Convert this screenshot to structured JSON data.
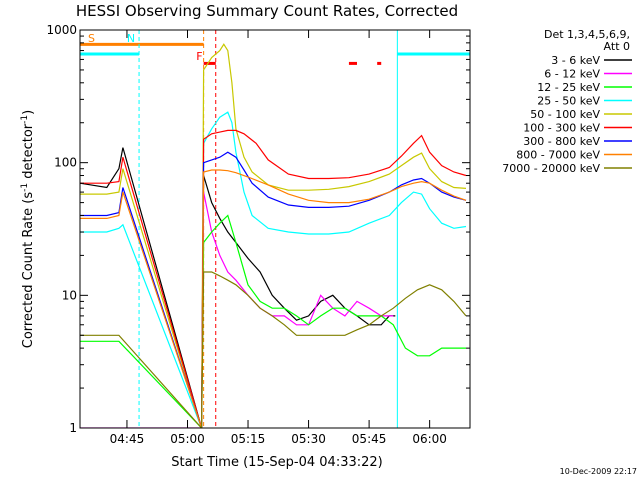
{
  "chart_data": {
    "type": "line",
    "title": "HESSI Observing Summary Count Rates, Corrected",
    "xlabel": "Start Time (15-Sep-04 04:33:22)",
    "ylabel": "Corrected Count Rate (s⁻¹ detector⁻¹)",
    "ylabel_main": "Corrected Count Rate (s",
    "ylabel_exp": "-1",
    "ylabel_mid": " detector",
    "ylabel_end": ")",
    "y_scale": "log",
    "ylim": [
      1,
      1000
    ],
    "xlim": [
      "04:33:22",
      "06:10:00"
    ],
    "x_ticks": [
      "04:45",
      "05:00",
      "05:15",
      "05:30",
      "05:45",
      "06:00"
    ],
    "y_ticks": [
      "1",
      "10",
      "100",
      "1000"
    ],
    "grid": false,
    "legend_position": "right",
    "legend_header": [
      "Det 1,3,4,5,6,9,",
      "Att 0"
    ],
    "footer": "10-Dec-2009 22:17",
    "colors": {
      "saa": "#00ffff",
      "night": "#ff8000",
      "flare": "#ff0000"
    },
    "intervals": [
      {
        "name": "night",
        "label": "S",
        "start": "04:33:22",
        "end": "05:04:00",
        "bar_value": 780,
        "color": "#ff8000"
      },
      {
        "name": "saa",
        "label": "N",
        "start": "04:33:22",
        "end": "04:48:00",
        "bar_value": 660,
        "color": "#00ffff"
      },
      {
        "name": "flare",
        "label": "F",
        "start": "05:04:00",
        "end": "05:07:00",
        "color": "#ff0000"
      },
      {
        "name": "saa",
        "label": "",
        "start": "05:52:00",
        "end": "06:10:00",
        "bar_value": 660,
        "color": "#00ffff"
      }
    ],
    "flare_marks": [
      {
        "start": "05:04:00",
        "end": "05:07:00",
        "value": 560
      },
      {
        "start": "05:40:00",
        "end": "05:42:00",
        "value": 560
      },
      {
        "start": "05:47:00",
        "end": "05:48:00",
        "value": 560
      }
    ],
    "series": [
      {
        "name": "3 - 6 keV",
        "color": "#000000",
        "x": [
          "04:33:22",
          "04:40:00",
          "04:43:00",
          "04:44:00",
          "05:03:30",
          "05:04:00",
          "05:06:00",
          "05:08:00",
          "05:10:00",
          "05:12:00",
          "05:15:00",
          "05:18:00",
          "05:21:00",
          "05:24:00",
          "05:27:00",
          "05:30:00",
          "05:33:00",
          "05:36:00",
          "05:39:00",
          "05:42:00",
          "05:45:00",
          "05:48:00",
          "05:50:00",
          "05:51:30"
        ],
        "values": [
          70,
          65,
          90,
          130,
          1,
          80,
          50,
          38,
          30,
          25,
          19,
          15,
          10,
          8,
          6.5,
          7,
          9,
          10,
          8,
          7,
          6,
          6,
          7,
          7
        ]
      },
      {
        "name": "6 - 12 keV",
        "color": "#ff00ff",
        "x": [
          "04:33:22",
          "04:43:00",
          "04:44:00",
          "05:03:30",
          "05:04:00",
          "05:06:00",
          "05:08:00",
          "05:10:00",
          "05:12:00",
          "05:15:00",
          "05:18:00",
          "05:21:00",
          "05:24:00",
          "05:27:00",
          "05:30:00",
          "05:33:00",
          "05:36:00",
          "05:39:00",
          "05:42:00",
          "05:45:00",
          "05:48:00",
          "05:51:00"
        ],
        "values": [
          1,
          1,
          1,
          1,
          60,
          30,
          20,
          15,
          13,
          10,
          8,
          7,
          7,
          6,
          6,
          10,
          8,
          7,
          9,
          8,
          7,
          7
        ]
      },
      {
        "name": "12 - 25 keV",
        "color": "#00ff00",
        "x": [
          "04:33:22",
          "04:40:00",
          "04:43:00",
          "05:03:30",
          "05:04:00",
          "05:06:00",
          "05:08:00",
          "05:10:00",
          "05:12:00",
          "05:15:00",
          "05:18:00",
          "05:21:00",
          "05:24:00",
          "05:27:00",
          "05:30:00",
          "05:33:00",
          "05:36:00",
          "05:39:00",
          "05:42:00",
          "05:45:00",
          "05:48:00",
          "05:51:00",
          "05:54:00",
          "05:57:00",
          "06:00:00",
          "06:03:00",
          "06:06:00",
          "06:09:00"
        ],
        "values": [
          4.5,
          4.5,
          4.5,
          1,
          25,
          30,
          35,
          40,
          25,
          12,
          9,
          8,
          8,
          7,
          6,
          7,
          8,
          8,
          7,
          7,
          7,
          6,
          4,
          3.5,
          3.5,
          4,
          4,
          4
        ]
      },
      {
        "name": "25 - 50 keV",
        "color": "#00ffff",
        "x": [
          "04:33:22",
          "04:40:00",
          "04:43:00",
          "04:44:00",
          "05:03:30",
          "05:04:00",
          "05:06:00",
          "05:08:00",
          "05:10:00",
          "05:11:00",
          "05:12:00",
          "05:14:00",
          "05:16:00",
          "05:20:00",
          "05:25:00",
          "05:30:00",
          "05:35:00",
          "05:40:00",
          "05:45:00",
          "05:50:00",
          "05:53:00",
          "05:56:00",
          "05:58:00",
          "06:00:00",
          "06:03:00",
          "06:06:00",
          "06:09:00"
        ],
        "values": [
          30,
          30,
          32,
          34,
          1,
          140,
          180,
          220,
          240,
          200,
          120,
          60,
          40,
          32,
          30,
          29,
          29,
          30,
          35,
          40,
          50,
          60,
          58,
          45,
          35,
          32,
          33
        ]
      },
      {
        "name": "50 - 100 keV",
        "color": "#c8c800",
        "x": [
          "04:33:22",
          "04:40:00",
          "04:43:00",
          "04:44:00",
          "05:03:30",
          "05:04:00",
          "05:06:00",
          "05:08:00",
          "05:09:00",
          "05:10:00",
          "05:11:00",
          "05:12:00",
          "05:14:00",
          "05:16:00",
          "05:20:00",
          "05:25:00",
          "05:30:00",
          "05:35:00",
          "05:40:00",
          "05:45:00",
          "05:50:00",
          "05:53:00",
          "05:56:00",
          "05:58:00",
          "06:00:00",
          "06:03:00",
          "06:06:00",
          "06:09:00"
        ],
        "values": [
          58,
          58,
          60,
          90,
          1,
          500,
          620,
          700,
          780,
          700,
          400,
          180,
          110,
          85,
          68,
          62,
          62,
          63,
          66,
          72,
          82,
          95,
          110,
          118,
          90,
          72,
          65,
          64
        ]
      },
      {
        "name": "100 - 300 keV",
        "color": "#ff0000",
        "x": [
          "04:33:22",
          "04:40:00",
          "04:43:00",
          "04:44:00",
          "05:03:30",
          "05:04:00",
          "05:06:00",
          "05:08:00",
          "05:10:00",
          "05:12:00",
          "05:14:00",
          "05:17:00",
          "05:20:00",
          "05:25:00",
          "05:30:00",
          "05:35:00",
          "05:40:00",
          "05:45:00",
          "05:50:00",
          "05:53:00",
          "05:56:00",
          "05:58:00",
          "06:00:00",
          "06:03:00",
          "06:06:00",
          "06:09:00"
        ],
        "values": [
          70,
          70,
          72,
          110,
          1,
          150,
          165,
          170,
          175,
          175,
          165,
          140,
          105,
          82,
          76,
          76,
          77,
          82,
          92,
          112,
          140,
          160,
          120,
          95,
          85,
          80
        ]
      },
      {
        "name": "300 - 800 keV",
        "color": "#0000ff",
        "x": [
          "04:33:22",
          "04:40:00",
          "04:43:00",
          "04:44:00",
          "05:03:30",
          "05:04:00",
          "05:06:00",
          "05:08:00",
          "05:10:00",
          "05:12:00",
          "05:14:00",
          "05:16:00",
          "05:20:00",
          "05:25:00",
          "05:30:00",
          "05:35:00",
          "05:40:00",
          "05:45:00",
          "05:50:00",
          "05:53:00",
          "05:56:00",
          "05:58:00",
          "06:00:00",
          "06:03:00",
          "06:06:00",
          "06:09:00"
        ],
        "values": [
          40,
          40,
          42,
          65,
          1,
          100,
          105,
          110,
          120,
          110,
          88,
          70,
          55,
          48,
          46,
          46,
          47,
          52,
          60,
          68,
          74,
          76,
          70,
          60,
          55,
          52
        ]
      },
      {
        "name": "800 - 7000 keV",
        "color": "#ff8000",
        "x": [
          "04:33:22",
          "04:40:00",
          "04:43:00",
          "04:44:00",
          "05:03:30",
          "05:04:00",
          "05:06:00",
          "05:08:00",
          "05:10:00",
          "05:12:00",
          "05:15:00",
          "05:20:00",
          "05:25:00",
          "05:30:00",
          "05:35:00",
          "05:40:00",
          "05:45:00",
          "05:50:00",
          "05:53:00",
          "05:56:00",
          "05:58:00",
          "06:00:00",
          "06:03:00",
          "06:06:00",
          "06:09:00"
        ],
        "values": [
          38,
          38,
          40,
          60,
          1,
          85,
          88,
          88,
          87,
          84,
          78,
          68,
          58,
          52,
          50,
          50,
          53,
          60,
          66,
          70,
          72,
          70,
          62,
          56,
          52
        ]
      },
      {
        "name": "7000 - 20000 keV",
        "color": "#808000",
        "x": [
          "04:33:22",
          "04:40:00",
          "04:43:00",
          "05:03:30",
          "05:04:00",
          "05:06:00",
          "05:08:00",
          "05:10:00",
          "05:12:00",
          "05:15:00",
          "05:18:00",
          "05:21:00",
          "05:24:00",
          "05:27:00",
          "05:30:00",
          "05:33:00",
          "05:36:00",
          "05:39:00",
          "05:42:00",
          "05:45:00",
          "05:48:00",
          "05:51:00",
          "05:54:00",
          "05:57:00",
          "06:00:00",
          "06:03:00",
          "06:06:00",
          "06:09:00"
        ],
        "values": [
          5,
          5,
          5,
          1,
          15,
          15,
          14,
          13,
          12,
          10,
          8,
          7,
          6,
          5,
          5,
          5,
          5,
          5,
          5.5,
          6,
          7,
          8,
          9.5,
          11,
          12,
          11,
          9,
          7
        ]
      }
    ]
  }
}
